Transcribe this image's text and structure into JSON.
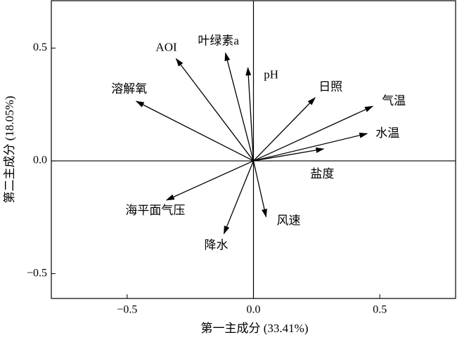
{
  "chart_data": {
    "type": "biplot",
    "x_label": "第一主成分 (33.41%)",
    "y_label": "第二主成分 (18.05%)",
    "xlim": [
      -0.8,
      0.8
    ],
    "ylim": [
      -0.61,
      0.71
    ],
    "xticks": [
      {
        "value": -0.5,
        "label": "−0.5"
      },
      {
        "value": 0,
        "label": "0.0"
      },
      0.5
    ],
    "yticks": [
      {
        "value": -0.5,
        "label": "−0.5"
      },
      {
        "value": 0,
        "label": "0.0"
      },
      0.5
    ],
    "color": "#000000",
    "vectors": {
      "names": [
        "AOI",
        "叶绿素a",
        "pH",
        "日照",
        "气温",
        "水温",
        "盐度",
        "溶解氧",
        "海平面气压",
        "降水",
        "风速"
      ],
      "x": [
        -0.306,
        -0.111,
        -0.022,
        0.244,
        0.472,
        0.45,
        0.278,
        -0.464,
        -0.344,
        -0.117,
        0.05
      ],
      "y": [
        0.453,
        0.478,
        0.413,
        0.28,
        0.242,
        0.121,
        0.053,
        0.264,
        -0.174,
        -0.323,
        -0.248
      ]
    }
  }
}
